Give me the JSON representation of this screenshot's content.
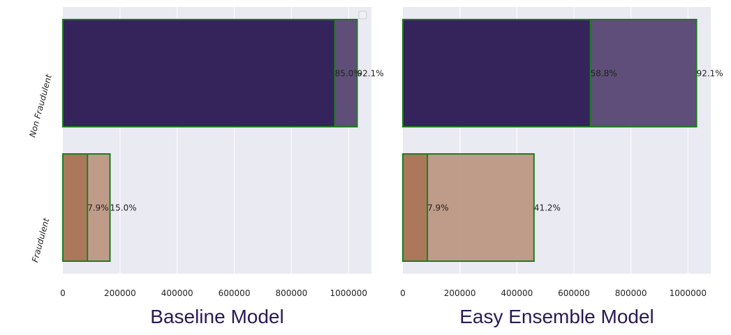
{
  "colors": {
    "panel_bg": "#eaeaf2",
    "grid": "#ffffff",
    "title": "#2b1a52",
    "bar_edge": "#1e7d1e",
    "non_fraudulent_predicted": "#33215a",
    "non_fraudulent_actual": "#564672",
    "fraudulent_predicted": "#aa7658",
    "fraudulent_actual": "#bd9784"
  },
  "chart_data": [
    {
      "type": "bar",
      "orientation": "horizontal",
      "title": "Baseline Model",
      "categories": [
        "Non Fraudulent",
        "Fraudulent"
      ],
      "xlim": [
        0,
        1080000
      ],
      "xticks": [
        0,
        200000,
        400000,
        600000,
        800000,
        1000000
      ],
      "xtick_labels": [
        "0",
        "200000",
        "400000",
        "600000",
        "800000",
        "1000000"
      ],
      "grid": true,
      "legend": "top-right",
      "series": [
        {
          "name": "",
          "values": [
            1030000,
            165000
          ],
          "labels": [
            "92.1%",
            "15.0%"
          ],
          "colors": [
            "non_fraudulent_actual",
            "fraudulent_actual"
          ]
        },
        {
          "name": "",
          "values": [
            952000,
            86000
          ],
          "labels": [
            "85.0%",
            "7.9%"
          ],
          "colors": [
            "non_fraudulent_predicted",
            "fraudulent_predicted"
          ]
        }
      ]
    },
    {
      "type": "bar",
      "orientation": "horizontal",
      "title": "Easy Ensemble Model",
      "categories": [
        "Non Fraudulent",
        "Fraudulent"
      ],
      "xlim": [
        0,
        1080000
      ],
      "xticks": [
        0,
        200000,
        400000,
        600000,
        800000,
        1000000
      ],
      "xtick_labels": [
        "0",
        "200000",
        "400000",
        "600000",
        "800000",
        "1000000"
      ],
      "grid": true,
      "legend": "none",
      "series": [
        {
          "name": "",
          "values": [
            1030000,
            460000
          ],
          "labels": [
            "92.1%",
            "41.2%"
          ],
          "colors": [
            "non_fraudulent_actual",
            "fraudulent_actual"
          ]
        },
        {
          "name": "",
          "values": [
            658000,
            86000
          ],
          "labels": [
            "58.8%",
            "7.9%"
          ],
          "colors": [
            "non_fraudulent_predicted",
            "fraudulent_predicted"
          ]
        }
      ]
    }
  ]
}
